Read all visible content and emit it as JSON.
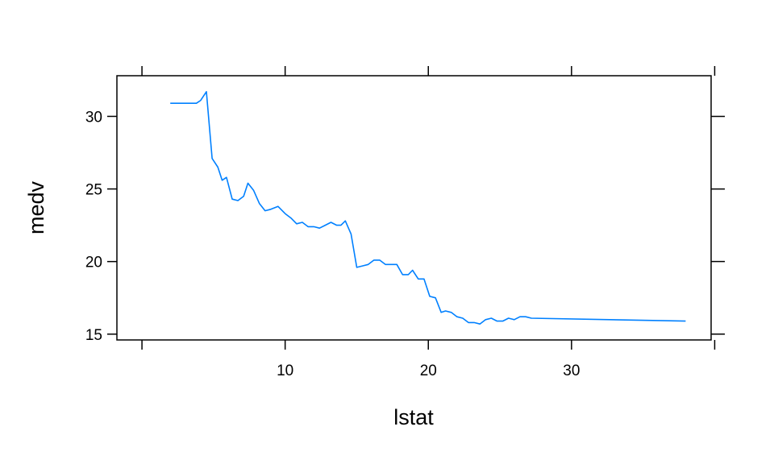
{
  "chart_data": {
    "type": "line",
    "title": "",
    "xlabel": "lstat",
    "ylabel": "medv",
    "xlim": [
      -1.75,
      39.75
    ],
    "ylim": [
      14.6,
      32.8
    ],
    "x_ticks": [
      10,
      20,
      30
    ],
    "x_tick_labels": [
      "10",
      "20",
      "30"
    ],
    "y_ticks": [
      15,
      20,
      25,
      30
    ],
    "y_tick_labels": [
      "15",
      "20",
      "25",
      "30"
    ],
    "grid": false,
    "line_color": "#0080ff",
    "series": [
      {
        "x": [
          1.98,
          3.8,
          4.1,
          4.5,
          4.9,
          5.3,
          5.6,
          5.9,
          6.3,
          6.7,
          7.1,
          7.4,
          7.8,
          8.2,
          8.6,
          9.0,
          9.5,
          10.0,
          10.4,
          10.8,
          11.2,
          11.6,
          12.0,
          12.4,
          12.8,
          13.2,
          13.6,
          13.9,
          14.2,
          14.6,
          15.0,
          15.4,
          15.8,
          16.2,
          16.6,
          17.0,
          17.4,
          17.8,
          18.2,
          18.6,
          18.9,
          19.3,
          19.7,
          20.1,
          20.5,
          20.9,
          21.2,
          21.6,
          22.0,
          22.4,
          22.8,
          23.2,
          23.6,
          24.0,
          24.4,
          24.8,
          25.2,
          25.6,
          26.0,
          26.4,
          26.8,
          27.2,
          37.97
        ],
        "y": [
          30.9,
          30.9,
          31.1,
          31.7,
          27.1,
          26.5,
          25.6,
          25.8,
          24.3,
          24.2,
          24.5,
          25.4,
          24.9,
          24.0,
          23.5,
          23.6,
          23.8,
          23.3,
          23.0,
          22.6,
          22.7,
          22.4,
          22.4,
          22.3,
          22.5,
          22.7,
          22.5,
          22.5,
          22.8,
          21.9,
          19.6,
          19.7,
          19.8,
          20.1,
          20.1,
          19.8,
          19.8,
          19.8,
          19.1,
          19.1,
          19.4,
          18.8,
          18.8,
          17.6,
          17.5,
          16.5,
          16.6,
          16.5,
          16.2,
          16.1,
          15.8,
          15.8,
          15.7,
          16.0,
          16.1,
          15.9,
          15.9,
          16.1,
          16.0,
          16.2,
          16.2,
          16.1,
          15.9
        ]
      }
    ]
  }
}
